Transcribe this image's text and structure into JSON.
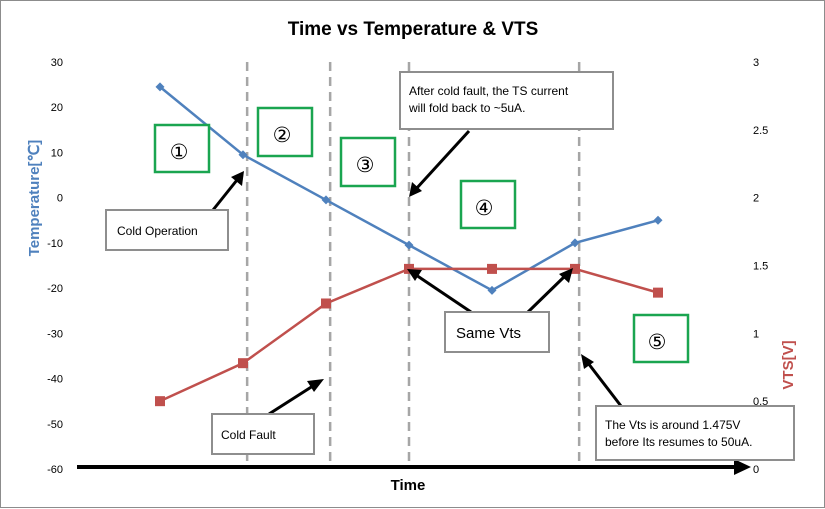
{
  "chart_data": {
    "type": "line",
    "title": "Time vs Temperature & VTS",
    "xlabel": "Time",
    "ylabel_left": "Temperature[℃]",
    "ylabel_right": "VTS[V]",
    "ylim_left": [
      -60,
      30
    ],
    "ylim_right": [
      0,
      3
    ],
    "left_ticks": [
      "30",
      "20",
      "10",
      "0",
      "-10",
      "-20",
      "-30",
      "-40",
      "-50",
      "-60"
    ],
    "right_ticks": [
      "3",
      "2.5",
      "2",
      "1.5",
      "1",
      "0.5",
      "0"
    ],
    "x": [
      1,
      2,
      3,
      4,
      5,
      6,
      7
    ],
    "grid": false,
    "series": [
      {
        "axis": "left",
        "color": "#4f81bd",
        "marker": "diamond",
        "values": [
          24.5,
          9.5,
          -0.5,
          -10.5,
          -20.5,
          -10,
          -5
        ]
      },
      {
        "axis": "right",
        "color": "#c0504d",
        "marker": "square",
        "values": [
          0.5,
          0.78,
          1.22,
          1.475,
          1.475,
          1.475,
          1.3
        ]
      }
    ],
    "vertical_dashed_lines_x": [
      2.05,
      3.05,
      4.0,
      6.05
    ],
    "regions": [
      {
        "label": "①"
      },
      {
        "label": "②"
      },
      {
        "label": "③"
      },
      {
        "label": "④"
      },
      {
        "label": "⑤"
      }
    ],
    "callouts": [
      {
        "id": "cold-operation",
        "text": "Cold Operation"
      },
      {
        "id": "cold-fault",
        "text": "Cold Fault"
      },
      {
        "id": "after-cold-fault",
        "lines": [
          "After cold fault, the TS current",
          "will fold back to ~5uA."
        ]
      },
      {
        "id": "same-vts",
        "text": "Same Vts"
      },
      {
        "id": "vts-around",
        "lines": [
          "The Vts is around 1.475V",
          "before Its resumes to 50uA."
        ]
      }
    ],
    "colors": {
      "temperature_axis_title": "#4f81bd",
      "vts_axis_title": "#c0504d",
      "region_border": "#1aa550",
      "gridline_dash": "#a6a6a6"
    }
  }
}
